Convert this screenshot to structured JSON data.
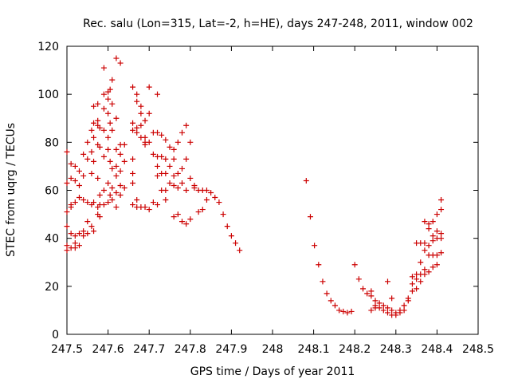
{
  "chart_data": {
    "type": "scatter",
    "title": "Rec. salu (Lon=315, Lat=-2, h=HE), days 247-248, 2011, window 002",
    "xlabel": "GPS time / Days of year 2011",
    "ylabel": "STEC from uqrg / TECUs",
    "xlim": [
      247.5,
      248.5
    ],
    "ylim": [
      0,
      120
    ],
    "x_ticks": [
      247.5,
      247.6,
      247.7,
      247.8,
      247.9,
      248,
      248.1,
      248.2,
      248.3,
      248.4,
      248.5
    ],
    "x_tick_labels": [
      "247.5",
      "247.6",
      "247.7",
      "247.8",
      "247.9",
      "248",
      "248.1",
      "248.2",
      "248.3",
      "248.4",
      "248.5"
    ],
    "y_ticks": [
      0,
      20,
      40,
      60,
      80,
      100,
      120
    ],
    "y_tick_labels": [
      "0",
      "20",
      "40",
      "60",
      "80",
      "100",
      "120"
    ],
    "grid": false,
    "marker": "+",
    "marker_color": "#cc0000",
    "points": [
      [
        247.5,
        76.0
      ],
      [
        247.5,
        63.0
      ],
      [
        247.5,
        51.0
      ],
      [
        247.5,
        45.0
      ],
      [
        247.5,
        37.0
      ],
      [
        247.5,
        35.0
      ],
      [
        247.51,
        71.0
      ],
      [
        247.51,
        65.0
      ],
      [
        247.51,
        53.0
      ],
      [
        247.51,
        54.0
      ],
      [
        247.51,
        42.0
      ],
      [
        247.51,
        36.0
      ],
      [
        247.52,
        70.0
      ],
      [
        247.52,
        64.0
      ],
      [
        247.52,
        55.0
      ],
      [
        247.52,
        41.0
      ],
      [
        247.52,
        38.0
      ],
      [
        247.52,
        36.0
      ],
      [
        247.53,
        68.0
      ],
      [
        247.53,
        62.0
      ],
      [
        247.53,
        57.0
      ],
      [
        247.53,
        42.0
      ],
      [
        247.53,
        37.0
      ],
      [
        247.54,
        75.0
      ],
      [
        247.54,
        66.0
      ],
      [
        247.54,
        56.0
      ],
      [
        247.54,
        43.0
      ],
      [
        247.54,
        41.0
      ],
      [
        247.55,
        80.0
      ],
      [
        247.55,
        73.0
      ],
      [
        247.55,
        55.0
      ],
      [
        247.55,
        47.0
      ],
      [
        247.55,
        42.0
      ],
      [
        247.56,
        85.0
      ],
      [
        247.56,
        76.0
      ],
      [
        247.56,
        67.0
      ],
      [
        247.56,
        54.0
      ],
      [
        247.56,
        45.0
      ],
      [
        247.565,
        95.0
      ],
      [
        247.565,
        88.0
      ],
      [
        247.565,
        82.0
      ],
      [
        247.565,
        72.0
      ],
      [
        247.565,
        55.0
      ],
      [
        247.565,
        43.0
      ],
      [
        247.575,
        96.0
      ],
      [
        247.575,
        89.0
      ],
      [
        247.575,
        87.0
      ],
      [
        247.575,
        79.0
      ],
      [
        247.575,
        65.0
      ],
      [
        247.575,
        53.0
      ],
      [
        247.575,
        50.0
      ],
      [
        247.58,
        86.0
      ],
      [
        247.58,
        78.0
      ],
      [
        247.58,
        58.0
      ],
      [
        247.58,
        54.0
      ],
      [
        247.58,
        49.0
      ],
      [
        247.59,
        111.0
      ],
      [
        247.59,
        100.0
      ],
      [
        247.59,
        94.0
      ],
      [
        247.59,
        85.0
      ],
      [
        247.59,
        74.0
      ],
      [
        247.59,
        60.0
      ],
      [
        247.59,
        54.0
      ],
      [
        247.6,
        101.0
      ],
      [
        247.6,
        98.0
      ],
      [
        247.6,
        92.0
      ],
      [
        247.6,
        82.0
      ],
      [
        247.6,
        77.0
      ],
      [
        247.6,
        63.0
      ],
      [
        247.6,
        55.0
      ],
      [
        247.605,
        102.0
      ],
      [
        247.605,
        88.0
      ],
      [
        247.605,
        72.0
      ],
      [
        247.605,
        58.0
      ],
      [
        247.61,
        106.0
      ],
      [
        247.61,
        96.0
      ],
      [
        247.61,
        85.0
      ],
      [
        247.61,
        69.0
      ],
      [
        247.61,
        61.0
      ],
      [
        247.61,
        56.0
      ],
      [
        247.62,
        115.0
      ],
      [
        247.62,
        90.0
      ],
      [
        247.62,
        77.0
      ],
      [
        247.62,
        70.0
      ],
      [
        247.62,
        66.0
      ],
      [
        247.62,
        59.0
      ],
      [
        247.62,
        53.0
      ],
      [
        247.63,
        113.0
      ],
      [
        247.63,
        79.0
      ],
      [
        247.63,
        75.0
      ],
      [
        247.63,
        68.0
      ],
      [
        247.63,
        62.0
      ],
      [
        247.63,
        58.0
      ],
      [
        247.64,
        79.0
      ],
      [
        247.64,
        72.0
      ],
      [
        247.64,
        61.0
      ],
      [
        247.66,
        103.0
      ],
      [
        247.66,
        88.0
      ],
      [
        247.66,
        85.0
      ],
      [
        247.66,
        73.0
      ],
      [
        247.66,
        67.0
      ],
      [
        247.66,
        63.0
      ],
      [
        247.66,
        54.0
      ],
      [
        247.67,
        100.0
      ],
      [
        247.67,
        97.0
      ],
      [
        247.67,
        86.0
      ],
      [
        247.67,
        84.0
      ],
      [
        247.67,
        56.0
      ],
      [
        247.67,
        53.0
      ],
      [
        247.68,
        95.0
      ],
      [
        247.68,
        92.0
      ],
      [
        247.68,
        87.0
      ],
      [
        247.68,
        82.0
      ],
      [
        247.68,
        53.0
      ],
      [
        247.69,
        89.0
      ],
      [
        247.69,
        82.0
      ],
      [
        247.69,
        80.0
      ],
      [
        247.69,
        79.0
      ],
      [
        247.69,
        53.0
      ],
      [
        247.7,
        103.0
      ],
      [
        247.7,
        92.0
      ],
      [
        247.7,
        80.0
      ],
      [
        247.7,
        52.0
      ],
      [
        247.71,
        84.0
      ],
      [
        247.71,
        75.0
      ],
      [
        247.71,
        55.0
      ],
      [
        247.72,
        100.0
      ],
      [
        247.72,
        84.0
      ],
      [
        247.72,
        74.0
      ],
      [
        247.72,
        70.0
      ],
      [
        247.72,
        66.0
      ],
      [
        247.72,
        54.0
      ],
      [
        247.73,
        83.0
      ],
      [
        247.73,
        74.0
      ],
      [
        247.73,
        67.0
      ],
      [
        247.73,
        60.0
      ],
      [
        247.74,
        81.0
      ],
      [
        247.74,
        73.0
      ],
      [
        247.74,
        67.0
      ],
      [
        247.74,
        60.0
      ],
      [
        247.74,
        56.0
      ],
      [
        247.75,
        78.0
      ],
      [
        247.75,
        70.0
      ],
      [
        247.75,
        63.0
      ],
      [
        247.76,
        77.0
      ],
      [
        247.76,
        73.0
      ],
      [
        247.76,
        66.0
      ],
      [
        247.76,
        62.0
      ],
      [
        247.76,
        49.0
      ],
      [
        247.77,
        80.0
      ],
      [
        247.77,
        67.0
      ],
      [
        247.77,
        61.0
      ],
      [
        247.77,
        50.0
      ],
      [
        247.78,
        84.0
      ],
      [
        247.78,
        69.0
      ],
      [
        247.78,
        63.0
      ],
      [
        247.78,
        47.0
      ],
      [
        247.79,
        87.0
      ],
      [
        247.79,
        73.0
      ],
      [
        247.79,
        60.0
      ],
      [
        247.79,
        46.0
      ],
      [
        247.8,
        80.0
      ],
      [
        247.8,
        65.0
      ],
      [
        247.8,
        48.0
      ],
      [
        247.81,
        62.0
      ],
      [
        247.81,
        61.0
      ],
      [
        247.82,
        60.0
      ],
      [
        247.82,
        51.0
      ],
      [
        247.83,
        60.0
      ],
      [
        247.83,
        52.0
      ],
      [
        247.84,
        60.0
      ],
      [
        247.84,
        56.0
      ],
      [
        247.85,
        59.0
      ],
      [
        247.86,
        57.0
      ],
      [
        247.87,
        55.0
      ],
      [
        247.88,
        50.0
      ],
      [
        247.89,
        45.0
      ],
      [
        247.9,
        41.0
      ],
      [
        247.91,
        38.0
      ],
      [
        247.92,
        35.0
      ],
      [
        248.082,
        64.0
      ],
      [
        248.092,
        49.0
      ],
      [
        248.102,
        37.0
      ],
      [
        248.112,
        29.0
      ],
      [
        248.122,
        22.0
      ],
      [
        248.132,
        17.0
      ],
      [
        248.142,
        14.0
      ],
      [
        248.152,
        12.0
      ],
      [
        248.162,
        10.0
      ],
      [
        248.172,
        9.5
      ],
      [
        248.182,
        9.0
      ],
      [
        248.192,
        9.5
      ],
      [
        248.2,
        29.0
      ],
      [
        248.21,
        23.0
      ],
      [
        248.22,
        19.0
      ],
      [
        248.23,
        17.0
      ],
      [
        248.24,
        18.0
      ],
      [
        248.24,
        16.0
      ],
      [
        248.24,
        10.0
      ],
      [
        248.25,
        14.0
      ],
      [
        248.25,
        12.0
      ],
      [
        248.25,
        11.0
      ],
      [
        248.26,
        13.0
      ],
      [
        248.26,
        11.0
      ],
      [
        248.27,
        12.0
      ],
      [
        248.27,
        10.0
      ],
      [
        248.28,
        22.0
      ],
      [
        248.28,
        11.0
      ],
      [
        248.28,
        9.0
      ],
      [
        248.29,
        15.0
      ],
      [
        248.29,
        10.0
      ],
      [
        248.29,
        8.0
      ],
      [
        248.3,
        9.0
      ],
      [
        248.3,
        8.0
      ],
      [
        248.31,
        10.0
      ],
      [
        248.31,
        9.0
      ],
      [
        248.32,
        12.0
      ],
      [
        248.32,
        10.0
      ],
      [
        248.33,
        15.0
      ],
      [
        248.33,
        14.0
      ],
      [
        248.34,
        24.0
      ],
      [
        248.34,
        21.0
      ],
      [
        248.34,
        18.0
      ],
      [
        248.35,
        38.0
      ],
      [
        248.35,
        25.0
      ],
      [
        248.35,
        23.0
      ],
      [
        248.35,
        19.0
      ],
      [
        248.36,
        38.0
      ],
      [
        248.36,
        30.0
      ],
      [
        248.36,
        25.0
      ],
      [
        248.36,
        22.0
      ],
      [
        248.37,
        47.0
      ],
      [
        248.37,
        38.0
      ],
      [
        248.37,
        35.0
      ],
      [
        248.37,
        27.0
      ],
      [
        248.37,
        25.0
      ],
      [
        248.38,
        46.0
      ],
      [
        248.38,
        44.0
      ],
      [
        248.38,
        37.0
      ],
      [
        248.38,
        33.0
      ],
      [
        248.38,
        26.0
      ],
      [
        248.39,
        47.0
      ],
      [
        248.39,
        41.0
      ],
      [
        248.39,
        39.0
      ],
      [
        248.39,
        33.0
      ],
      [
        248.39,
        28.0
      ],
      [
        248.4,
        50.0
      ],
      [
        248.4,
        43.0
      ],
      [
        248.4,
        40.0
      ],
      [
        248.4,
        33.0
      ],
      [
        248.4,
        29.0
      ],
      [
        248.41,
        56.0
      ],
      [
        248.41,
        52.0
      ],
      [
        248.41,
        42.0
      ],
      [
        248.41,
        40.0
      ],
      [
        248.41,
        34.0
      ]
    ]
  }
}
